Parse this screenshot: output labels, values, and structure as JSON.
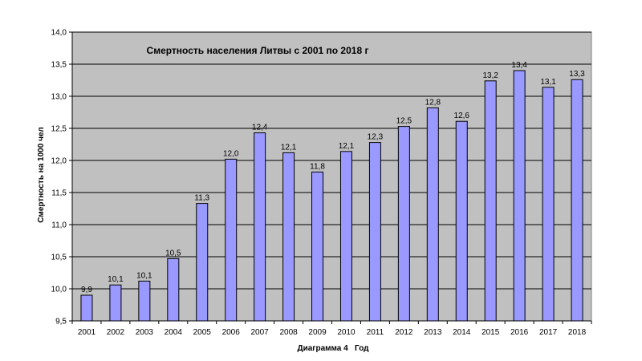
{
  "chart_data": {
    "type": "bar",
    "title": "Смертность населения Литвы с 2001 по 2018 г",
    "xlabel": "Диаграмма 4   Год",
    "ylabel": "Смертность на 1000 чел",
    "ylim": [
      9.5,
      14.0
    ],
    "ytick_step": 0.5,
    "ytick_labels": [
      "9,5",
      "10,0",
      "10,5",
      "11,0",
      "11,5",
      "12,0",
      "12,5",
      "13,0",
      "13,5",
      "14,0"
    ],
    "grid": true,
    "legend": "none",
    "categories": [
      "2001",
      "2002",
      "2003",
      "2004",
      "2005",
      "2006",
      "2007",
      "2008",
      "2009",
      "2010",
      "2011",
      "2012",
      "2013",
      "2014",
      "2015",
      "2016",
      "2017",
      "2018"
    ],
    "values": [
      9.9,
      10.06,
      10.12,
      10.47,
      11.33,
      12.02,
      12.43,
      12.12,
      11.82,
      12.14,
      12.28,
      12.53,
      12.82,
      12.61,
      13.24,
      13.4,
      13.14,
      13.26
    ],
    "data_labels": [
      "9,9",
      "10,1",
      "10,1",
      "10,5",
      "11,3",
      "12,0",
      "12,4",
      "12,1",
      "11,8",
      "12,1",
      "12,3",
      "12,5",
      "12,8",
      "12,6",
      "13,2",
      "13,4",
      "13,1",
      "13,3"
    ],
    "colors": {
      "bar_fill": "#9999ff",
      "bar_stroke": "#000000",
      "plot_background": "#c0c0c0",
      "gridline": "#000000"
    }
  }
}
